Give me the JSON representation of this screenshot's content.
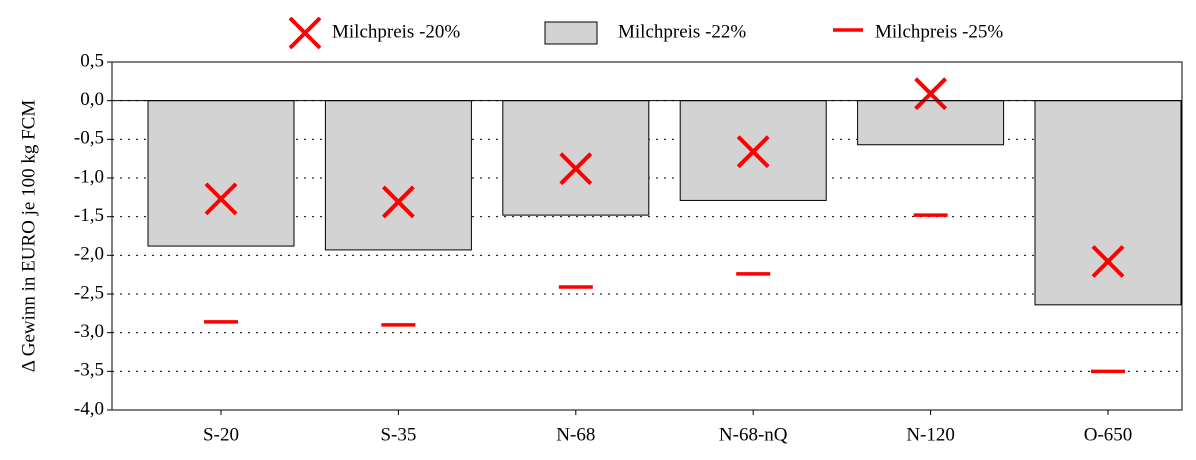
{
  "chart_data": {
    "type": "bar",
    "y_label": "Δ  Gewinn in EURO je 100 kg FCM",
    "categories": [
      "S-20",
      "S-35",
      "N-68",
      "N-68-nQ",
      "N-120",
      "O-650"
    ],
    "series": [
      {
        "name": "Milchpreis -20%",
        "color": "#ff0000",
        "marker": "x",
        "values": [
          -1.27,
          -1.31,
          -0.88,
          -0.66,
          0.09,
          -2.08
        ]
      },
      {
        "name": "Milchpreis -22%",
        "color": "#d3d3d3",
        "marker": "bar",
        "values": [
          -1.88,
          -1.93,
          -1.48,
          -1.29,
          -0.57,
          -2.64
        ]
      },
      {
        "name": "Milchpreis -25%",
        "color": "#ff0000",
        "marker": "dash",
        "values": [
          -2.86,
          -2.9,
          -2.41,
          -2.24,
          -1.48,
          -3.5
        ]
      }
    ],
    "ylim": [
      -4.0,
      0.5
    ],
    "yticks": [
      {
        "value": 0.5,
        "label": "0,5"
      },
      {
        "value": 0.0,
        "label": "0,0"
      },
      {
        "value": -0.5,
        "label": "-0,5"
      },
      {
        "value": -1.0,
        "label": "-1,0"
      },
      {
        "value": -1.5,
        "label": "-1,5"
      },
      {
        "value": -2.0,
        "label": "-2,0"
      },
      {
        "value": -2.5,
        "label": "-2,5"
      },
      {
        "value": -3.0,
        "label": "-3,0"
      },
      {
        "value": -3.5,
        "label": "-3,5"
      },
      {
        "value": -4.0,
        "label": "-4,0"
      }
    ],
    "grid": true,
    "legend": "top"
  }
}
